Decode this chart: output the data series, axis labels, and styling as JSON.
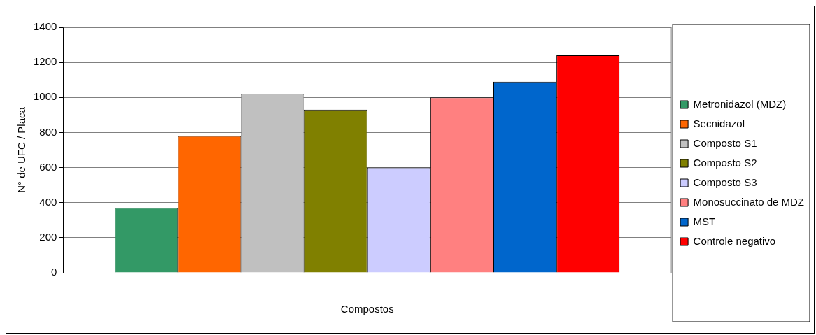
{
  "chart_data": {
    "type": "bar",
    "xlabel": "Compostos",
    "ylabel": "N° de UFC / Placa",
    "categories": [
      null
    ],
    "series": [
      {
        "name": "Metronidazol (MDZ)",
        "color": "#339966",
        "values": [
          370
        ]
      },
      {
        "name": "Secnidazol",
        "color": "#ff6600",
        "values": [
          780
        ]
      },
      {
        "name": "Composto S1",
        "color": "#c0c0c0",
        "values": [
          1020
        ]
      },
      {
        "name": "Composto S2",
        "color": "#808000",
        "values": [
          930
        ]
      },
      {
        "name": "Composto S3",
        "color": "#ccccff",
        "values": [
          600
        ]
      },
      {
        "name": "Monosuccinato de MDZ",
        "color": "#ff8080",
        "values": [
          1000
        ]
      },
      {
        "name": "MST",
        "color": "#0066cc",
        "values": [
          1090
        ]
      },
      {
        "name": "Controle negativo",
        "color": "#ff0000",
        "values": [
          1240
        ]
      }
    ],
    "ylim": [
      0,
      1400
    ],
    "yticks": [
      0,
      200,
      400,
      600,
      800,
      1000,
      1200,
      1400
    ],
    "grid": "y",
    "legend": "right"
  }
}
